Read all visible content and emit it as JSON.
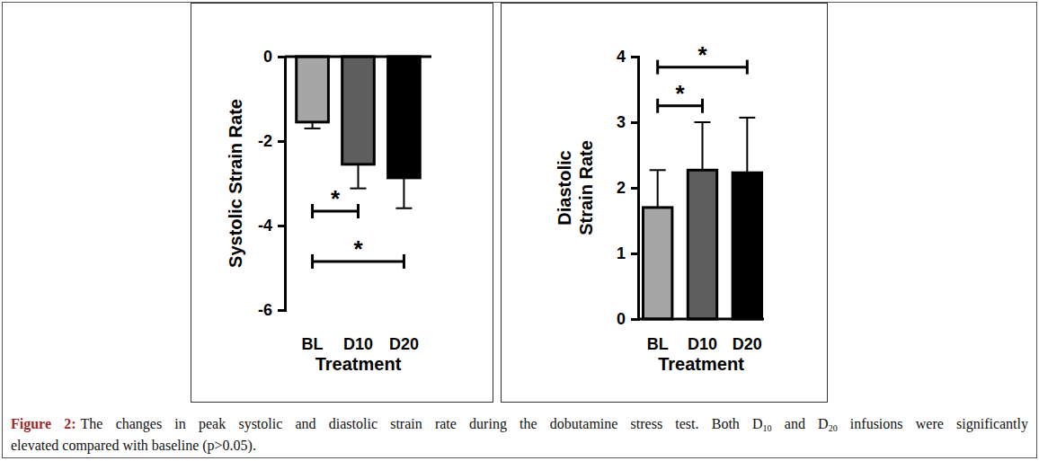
{
  "chart_data": [
    {
      "type": "bar",
      "y_label": [
        "Systolic Strain Rate"
      ],
      "x_label": "Treatment",
      "categories": [
        "BL",
        "D10",
        "D20"
      ],
      "values": [
        -1.55,
        -2.55,
        -2.87
      ],
      "errors": [
        0.15,
        0.57,
        0.72
      ],
      "colors": [
        "#a6a6a6",
        "#5e5e5e",
        "#000000"
      ],
      "ylim": [
        -6,
        0
      ],
      "yticks": [
        -6,
        -4,
        -2,
        0
      ],
      "brackets": [
        {
          "from": "BL",
          "to": "D10",
          "y": -3.66,
          "label": "*"
        },
        {
          "from": "BL",
          "to": "D20",
          "y": -4.85,
          "label": "*"
        }
      ]
    },
    {
      "type": "bar",
      "y_label": [
        "Diastolic",
        "Strain Rate"
      ],
      "x_label": "Treatment",
      "categories": [
        "BL",
        "D10",
        "D20"
      ],
      "values": [
        1.7,
        2.27,
        2.23
      ],
      "errors": [
        0.57,
        0.73,
        0.84
      ],
      "colors": [
        "#a6a6a6",
        "#5e5e5e",
        "#000000"
      ],
      "ylim": [
        0,
        4
      ],
      "yticks": [
        0,
        1,
        2,
        3,
        4
      ],
      "brackets": [
        {
          "from": "BL",
          "to": "D10",
          "y": 3.25,
          "label": "*"
        },
        {
          "from": "BL",
          "to": "D20",
          "y": 3.84,
          "label": "*"
        }
      ]
    }
  ],
  "caption": {
    "label": "Figure 2:",
    "lines": [
      [
        {
          "text": "The changes in peak systolic and diastolic strain rate during the dobutamine stress test. Both D"
        },
        {
          "text": "10",
          "sub": true
        },
        {
          "text": " and D"
        },
        {
          "text": "20",
          "sub": true
        },
        {
          "text": " infusions were significantly"
        }
      ],
      [
        {
          "text": "elevated compared with baseline (p>0.05)."
        }
      ]
    ]
  }
}
